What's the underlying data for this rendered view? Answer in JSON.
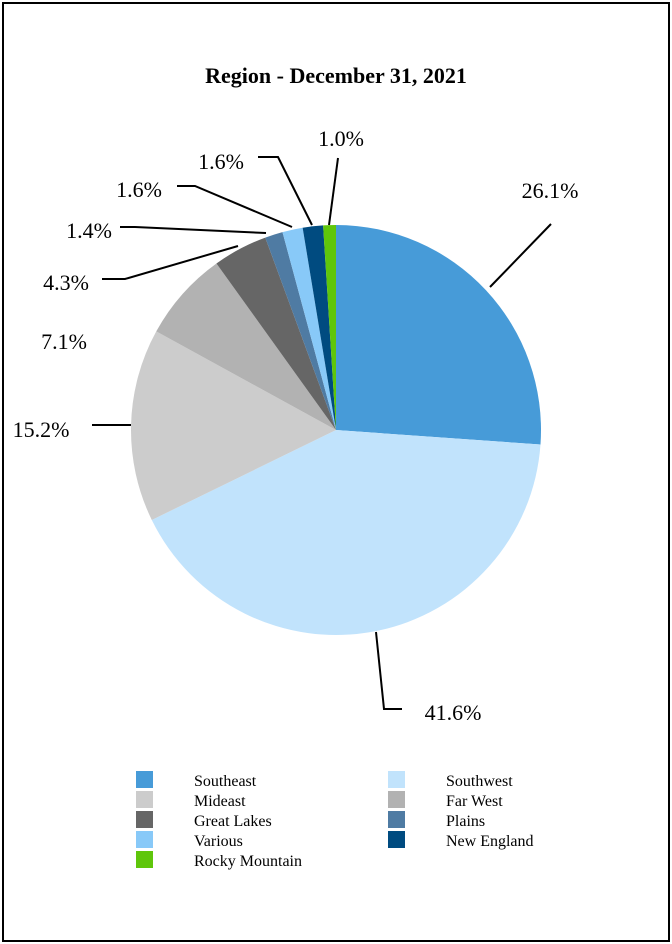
{
  "chart_data": {
    "type": "pie",
    "title": "Region - December 31, 2021",
    "slices": [
      {
        "label": "Southeast",
        "value": 26.1,
        "value_label": "26.1%",
        "color": "#479bd8"
      },
      {
        "label": "Southwest",
        "value": 41.6,
        "value_label": "41.6%",
        "color": "#c1e3fc"
      },
      {
        "label": "Mideast",
        "value": 15.2,
        "value_label": "15.2%",
        "color": "#cccccc"
      },
      {
        "label": "Far West",
        "value": 7.1,
        "value_label": "7.1%",
        "color": "#b2b2b2"
      },
      {
        "label": "Great Lakes",
        "value": 4.3,
        "value_label": "4.3%",
        "color": "#666666"
      },
      {
        "label": "Plains",
        "value": 1.4,
        "value_label": "1.4%",
        "color": "#4f7ba3"
      },
      {
        "label": "Various",
        "value": 1.6,
        "value_label": "1.6%",
        "color": "#88c9f8"
      },
      {
        "label": "New England",
        "value": 1.6,
        "value_label": "1.6%",
        "color": "#004b80"
      },
      {
        "label": "Rocky Mountain",
        "value": 1.0,
        "value_label": "1.0%",
        "color": "#5fc60b"
      }
    ],
    "legend": [
      {
        "label": "Southeast",
        "color": "#479bd8"
      },
      {
        "label": "Southwest",
        "color": "#c1e3fc"
      },
      {
        "label": "Mideast",
        "color": "#cccccc"
      },
      {
        "label": "Far West",
        "color": "#b2b2b2"
      },
      {
        "label": "Great Lakes",
        "color": "#666666"
      },
      {
        "label": "Plains",
        "color": "#4f7ba3"
      },
      {
        "label": "Various",
        "color": "#88c9f8"
      },
      {
        "label": "New England",
        "color": "#004b80"
      },
      {
        "label": "Rocky Mountain",
        "color": "#5fc60b"
      }
    ],
    "legend_position": "bottom"
  }
}
